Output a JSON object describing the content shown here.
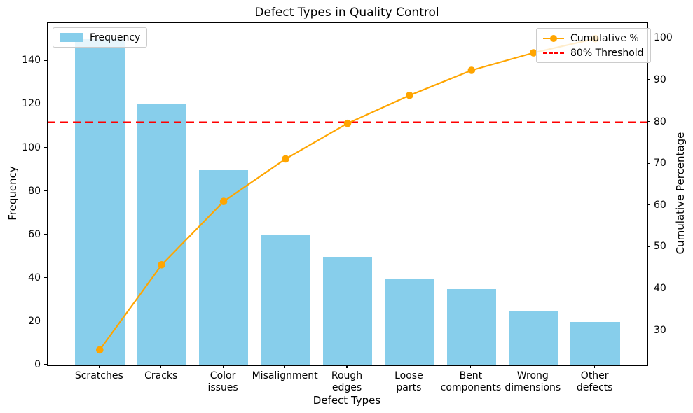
{
  "title": "Defect Types in Quality Control",
  "legends": {
    "frequency": {
      "label": "Frequency",
      "swatch_color": "#87CEEB"
    },
    "cumulative": {
      "label": "Cumulative %",
      "line_color": "#FFA500"
    },
    "threshold": {
      "label": "80% Threshold",
      "line_color": "#FF0000"
    }
  },
  "chart_data": {
    "type": "bar",
    "subtype": "pareto (bars + cumulative percentage line)",
    "title": "Defect Types in Quality Control",
    "xlabel": "Defect Types",
    "ylabel_left": "Frequency",
    "ylabel_right": "Cumulative Percentage",
    "categories": [
      "Scratches",
      "Cracks",
      "Color issues",
      "Misalignment",
      "Rough edges",
      "Loose parts",
      "Bent components",
      "Wrong dimensions",
      "Other defects"
    ],
    "x_tick_labels": [
      "Scratches",
      "Cracks",
      "Color\nissues",
      "Misalignment",
      "Rough\nedges",
      "Loose\nparts",
      "Bent\ncomponents",
      "Wrong\ndimensions",
      "Other\ndefects"
    ],
    "series": [
      {
        "name": "Frequency",
        "type": "bar",
        "color": "#87CEEB",
        "axis": "left",
        "values": [
          150,
          120,
          90,
          60,
          50,
          40,
          35,
          25,
          20
        ]
      },
      {
        "name": "Cumulative %",
        "type": "line",
        "color": "#FFA500",
        "marker": "circle",
        "axis": "right",
        "values": [
          25.4,
          45.8,
          61.0,
          71.2,
          79.7,
          86.4,
          92.4,
          96.6,
          100.0
        ]
      }
    ],
    "threshold_line": {
      "name": "80% Threshold",
      "value": 80,
      "color": "#FF0000",
      "style": "dashed",
      "axis": "right"
    },
    "y_left": {
      "ticks": [
        0,
        20,
        40,
        60,
        80,
        100,
        120,
        140
      ],
      "range": [
        0,
        157.5
      ]
    },
    "y_right": {
      "ticks": [
        30,
        40,
        50,
        60,
        70,
        80,
        90,
        100
      ],
      "range": [
        21.7,
        103.73
      ]
    },
    "grid": false,
    "legend_positions": {
      "frequency": "upper left",
      "cumulative_and_threshold": "upper right"
    }
  }
}
